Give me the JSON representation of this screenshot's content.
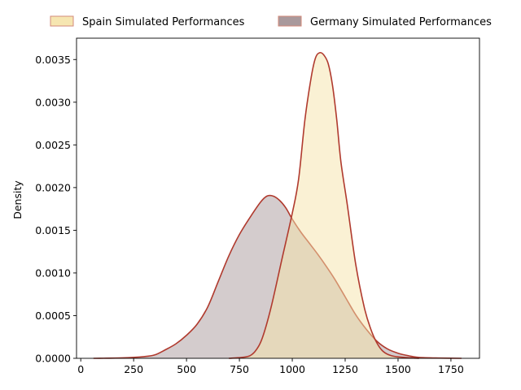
{
  "chart_data": {
    "type": "area",
    "title": "",
    "xlabel": "",
    "ylabel": "Density",
    "xlim": [
      -20,
      1885
    ],
    "ylim": [
      0,
      0.00375
    ],
    "x_ticks": [
      0,
      250,
      500,
      750,
      1000,
      1250,
      1500,
      1750
    ],
    "y_ticks": [
      0,
      0.0005,
      0.001,
      0.0015,
      0.002,
      0.0025,
      0.003,
      0.0035
    ],
    "x_tick_labels": [
      "0",
      "250",
      "500",
      "750",
      "1000",
      "1250",
      "1500",
      "1750"
    ],
    "y_tick_labels": [
      "0.0000",
      "0.0005",
      "0.0010",
      "0.0015",
      "0.0020",
      "0.0025",
      "0.0030",
      "0.0035"
    ],
    "grid": false,
    "legend_position": "top",
    "series": [
      {
        "name": "Spain Simulated Performances",
        "fill": "#f5e3a9",
        "fill_opacity": 0.5,
        "edge": "#b03a2e",
        "x": [
          700,
          760,
          800,
          830,
          860,
          900,
          950,
          1000,
          1030,
          1060,
          1090,
          1110,
          1130,
          1150,
          1170,
          1190,
          1210,
          1230,
          1260,
          1300,
          1340,
          1370,
          1400,
          1430,
          1470,
          1530,
          1600
        ],
        "y": [
          0,
          1e-05,
          3e-05,
          0.0001,
          0.00025,
          0.0006,
          0.00115,
          0.0017,
          0.0021,
          0.0028,
          0.0033,
          0.00352,
          0.00358,
          0.00355,
          0.00345,
          0.0032,
          0.0028,
          0.0023,
          0.0018,
          0.0011,
          0.0006,
          0.00035,
          0.00018,
          8e-05,
          3e-05,
          1e-05,
          0
        ]
      },
      {
        "name": "Germany Simulated Performances",
        "fill": "#a9999c",
        "fill_opacity": 0.5,
        "edge": "#b03a2e",
        "x": [
          60,
          200,
          300,
          350,
          400,
          450,
          500,
          550,
          600,
          650,
          700,
          750,
          800,
          850,
          880,
          910,
          940,
          970,
          1000,
          1040,
          1080,
          1120,
          1160,
          1200,
          1250,
          1300,
          1350,
          1400,
          1450,
          1500,
          1550,
          1600,
          1700,
          1800
        ],
        "y": [
          0,
          5e-06,
          2e-05,
          4e-05,
          0.0001,
          0.00017,
          0.00027,
          0.0004,
          0.0006,
          0.0009,
          0.0012,
          0.00145,
          0.00165,
          0.00183,
          0.0019,
          0.0019,
          0.00185,
          0.00176,
          0.00163,
          0.00148,
          0.00135,
          0.00122,
          0.00108,
          0.00093,
          0.00072,
          0.00051,
          0.00034,
          0.0002,
          0.00011,
          6e-05,
          3e-05,
          1e-05,
          3e-06,
          0
        ]
      }
    ]
  }
}
